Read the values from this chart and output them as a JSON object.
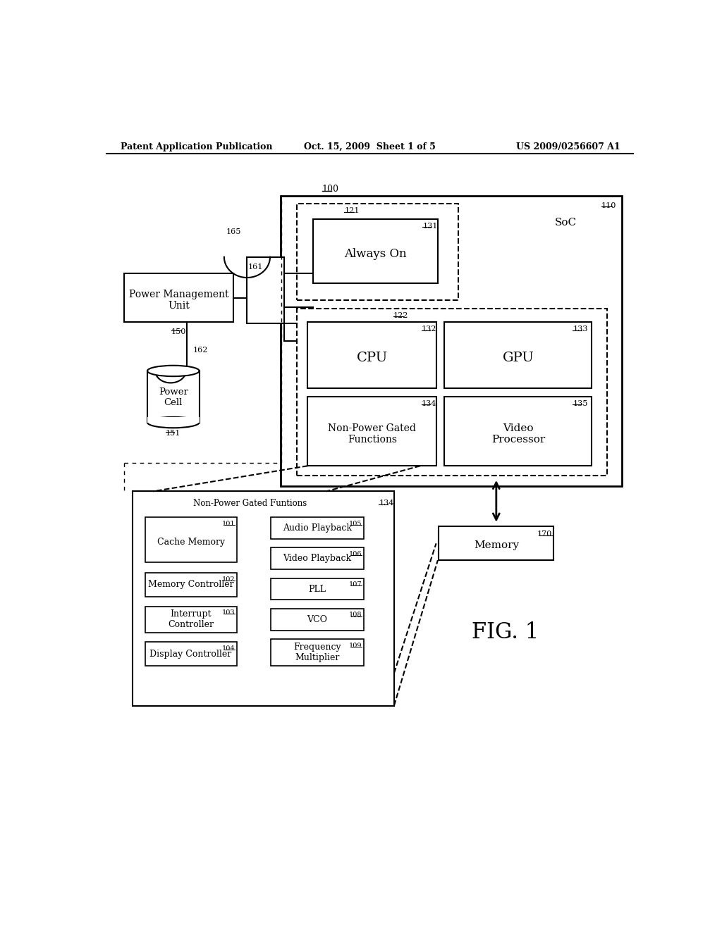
{
  "bg_color": "#ffffff",
  "header_left": "Patent Application Publication",
  "header_mid": "Oct. 15, 2009  Sheet 1 of 5",
  "header_right": "US 2009/0256607 A1",
  "fig_label": "FIG. 1",
  "label_100": "100",
  "label_110": "110",
  "label_SoC": "SoC",
  "label_121": "121",
  "label_122": "122",
  "label_131": "131",
  "label_132": "132",
  "label_133": "133",
  "label_134": "134",
  "label_135": "135",
  "label_150": "150",
  "label_151": "151",
  "label_161": "161",
  "label_162": "162",
  "label_165": "165",
  "label_170": "170",
  "label_134b": "134",
  "label_101": "101",
  "label_102": "102",
  "label_103": "103",
  "label_104": "104",
  "label_105": "105",
  "label_106": "106",
  "label_107": "107",
  "label_108": "108",
  "label_109": "109",
  "text_PMU": "Power Management\nUnit",
  "text_PowerCell": "Power\nCell",
  "text_AlwaysOn": "Always On",
  "text_CPU": "CPU",
  "text_GPU": "GPU",
  "text_NonPowerGated": "Non-Power Gated\nFunctions",
  "text_VideoProcessor": "Video\nProcessor",
  "text_Memory": "Memory",
  "text_NPG_title": "Non-Power Gated Funtions",
  "text_CacheMemory": "Cache Memory",
  "text_MemController": "Memory Controller",
  "text_InterruptController": "Interrupt\nController",
  "text_DisplayController": "Display Controller",
  "text_AudioPlayback": "Audio Playback",
  "text_VideoPlayback": "Video Playback",
  "text_PLL": "PLL",
  "text_VCO": "VCO",
  "text_FreqMult": "Frequency\nMultiplier"
}
